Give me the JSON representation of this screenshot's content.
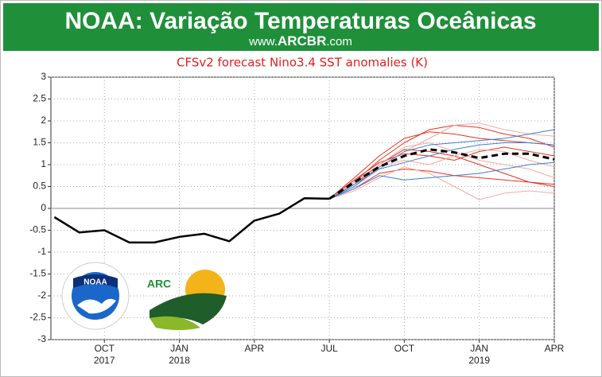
{
  "header": {
    "title": "NOAA: Variação Temperaturas Oceânicas",
    "site_prefix": "www.",
    "site_brand": "ARCBR",
    "site_suffix": ".com"
  },
  "logos": {
    "noaa": "NOAA",
    "arc": "ARC"
  },
  "chart_data": {
    "type": "line",
    "title": "CFSv2 forecast Nino3.4 SST anomalies (K)",
    "xlim": [
      6.86,
      27
    ],
    "ylim": [
      -3,
      3
    ],
    "yticks": [
      3,
      2.5,
      2,
      1.5,
      1,
      0.5,
      0,
      -0.5,
      -1,
      -1.5,
      -2,
      -2.5,
      -3
    ],
    "xticks": [
      {
        "value": 9,
        "label": "OCT"
      },
      {
        "value": 12,
        "label": "JAN"
      },
      {
        "value": 15,
        "label": "APR"
      },
      {
        "value": 18,
        "label": "JUL"
      },
      {
        "value": 21,
        "label": "OCT"
      },
      {
        "value": 24,
        "label": "JAN"
      },
      {
        "value": 27,
        "label": "APR"
      }
    ],
    "x_years": [
      {
        "value": 9,
        "label": "2017"
      },
      {
        "value": 12,
        "label": "2018"
      },
      {
        "value": 24,
        "label": "2019"
      }
    ],
    "grid": true,
    "zero_line": true,
    "series": [
      {
        "color": "#e8321e",
        "x": [
          18,
          19,
          20,
          21,
          22,
          23,
          24,
          25,
          26,
          27
        ],
        "values": [
          0.22,
          0.7,
          1.2,
          1.6,
          1.75,
          1.7,
          1.6,
          1.55,
          1.5,
          1.45
        ]
      },
      {
        "color": "#e8321e",
        "x": [
          18,
          19,
          20,
          21,
          22,
          23,
          24,
          25,
          26,
          27
        ],
        "values": [
          0.22,
          0.55,
          1.0,
          1.35,
          1.3,
          1.2,
          1.0,
          0.8,
          0.6,
          0.5
        ]
      },
      {
        "color": "#e8321e",
        "x": [
          18,
          19,
          20,
          21,
          22,
          23,
          24,
          25,
          26,
          27
        ],
        "values": [
          0.22,
          0.6,
          1.1,
          1.5,
          1.8,
          1.9,
          1.85,
          1.7,
          1.6,
          1.4
        ]
      },
      {
        "color": "#e8321e",
        "x": [
          18,
          19,
          20,
          21,
          22,
          23,
          24,
          25,
          26,
          27
        ],
        "values": [
          0.22,
          0.45,
          0.8,
          0.9,
          0.85,
          0.75,
          0.7,
          0.65,
          0.6,
          0.55
        ]
      },
      {
        "color": "#e8321e",
        "x": [
          18,
          19,
          20,
          21,
          22,
          23,
          24,
          25,
          26,
          27
        ],
        "values": [
          0.22,
          0.65,
          1.05,
          1.25,
          1.2,
          1.1,
          1.3,
          1.4,
          1.3,
          1.2
        ]
      },
      {
        "color": "#f3aaa0",
        "x": [
          18,
          19,
          20,
          21,
          22,
          23,
          24,
          25,
          26,
          27
        ],
        "values": [
          0.22,
          0.5,
          0.9,
          1.3,
          1.6,
          1.9,
          1.95,
          1.8,
          1.7,
          1.65
        ]
      },
      {
        "color": "#f3aaa0",
        "x": [
          18,
          19,
          20,
          21,
          22,
          23,
          24,
          25,
          26,
          27
        ],
        "values": [
          0.22,
          0.4,
          0.7,
          0.95,
          0.8,
          0.5,
          0.2,
          0.35,
          0.4,
          0.35
        ]
      },
      {
        "color": "#f3aaa0",
        "x": [
          18,
          19,
          20,
          21,
          22,
          23,
          24,
          25,
          26,
          27
        ],
        "values": [
          0.22,
          0.6,
          1.0,
          1.4,
          1.5,
          1.3,
          1.1,
          1.0,
          0.9,
          0.7
        ]
      },
      {
        "color": "#f3aaa0",
        "x": [
          18,
          19,
          20,
          21,
          22,
          23,
          24,
          25,
          26,
          27
        ],
        "values": [
          0.22,
          0.55,
          0.95,
          1.1,
          1.0,
          1.2,
          1.35,
          1.3,
          1.1,
          0.95
        ]
      },
      {
        "color": "#3a7fd5",
        "x": [
          18,
          19,
          20,
          21,
          22,
          23,
          24,
          25,
          26,
          27
        ],
        "values": [
          0.22,
          0.5,
          0.95,
          1.3,
          1.45,
          1.5,
          1.55,
          1.6,
          1.7,
          1.8
        ]
      },
      {
        "color": "#3a7fd5",
        "x": [
          18,
          19,
          20,
          21,
          22,
          23,
          24,
          25,
          26,
          27
        ],
        "values": [
          0.22,
          0.45,
          0.75,
          0.65,
          0.7,
          0.75,
          0.8,
          0.9,
          1.0,
          1.05
        ]
      },
      {
        "color": "#3a7fd5",
        "x": [
          18,
          19,
          20,
          21,
          22,
          23,
          24,
          25,
          26,
          27
        ],
        "values": [
          0.22,
          0.55,
          0.9,
          1.05,
          1.2,
          1.35,
          1.45,
          1.5,
          1.5,
          1.45
        ]
      },
      {
        "color": "#000000",
        "width": 2.5,
        "x": [
          7,
          8,
          9,
          10,
          11,
          12,
          13,
          14,
          15,
          16,
          17,
          18
        ],
        "values": [
          -0.2,
          -0.55,
          -0.5,
          -0.78,
          -0.78,
          -0.65,
          -0.58,
          -0.75,
          -0.28,
          -0.12,
          0.23,
          0.22
        ]
      },
      {
        "color": "#000000",
        "width": 3,
        "dashed": true,
        "x": [
          18,
          19,
          20,
          21,
          22,
          23,
          24,
          25,
          26,
          27
        ],
        "values": [
          0.22,
          0.6,
          0.95,
          1.2,
          1.35,
          1.28,
          1.15,
          1.25,
          1.25,
          1.12
        ]
      }
    ]
  }
}
